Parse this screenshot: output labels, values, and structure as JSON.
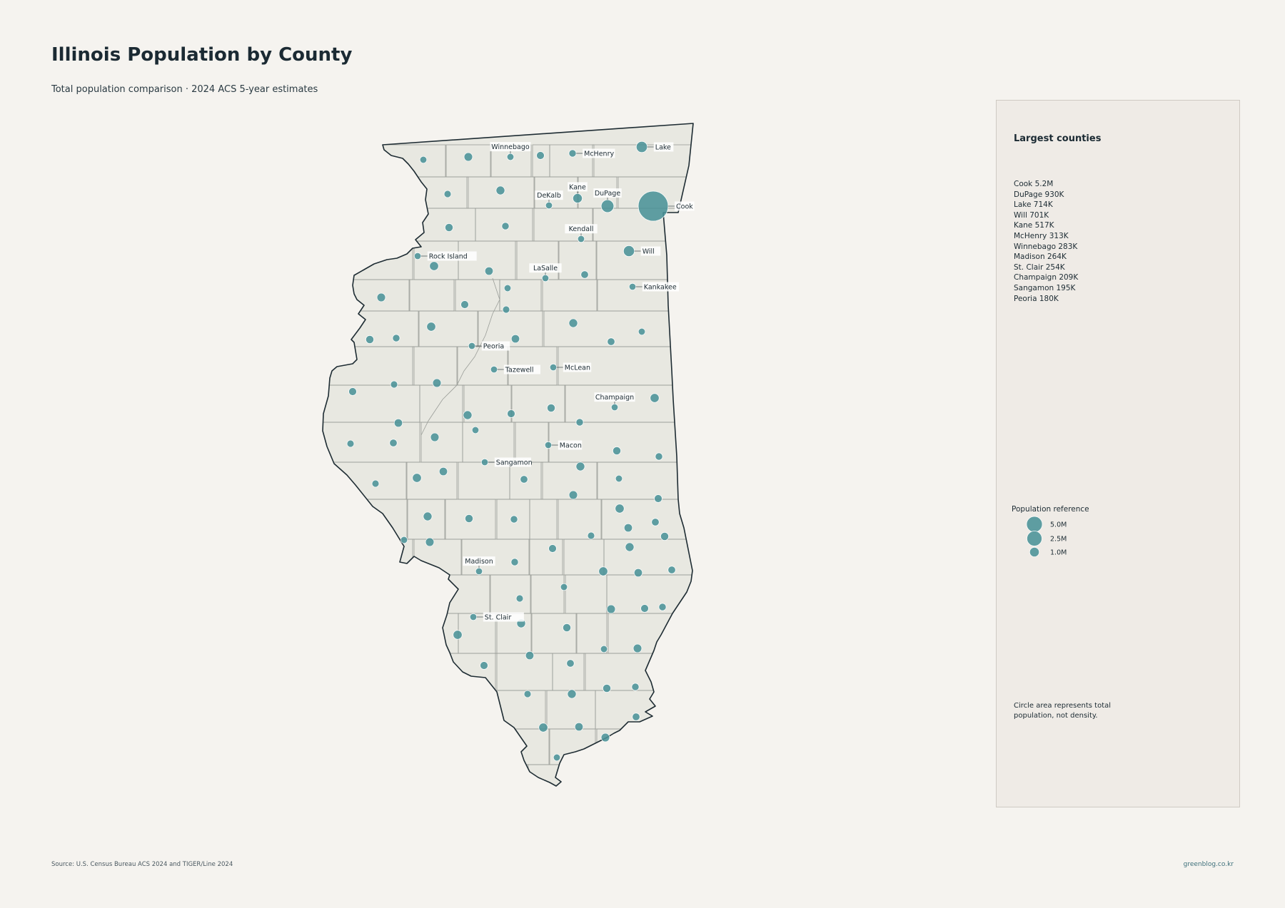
{
  "title": "Illinois Population by County",
  "subtitle": "Total population comparison · 2024 ACS 5-year estimates",
  "panel": {
    "title": "Largest counties",
    "top_counties": [
      "Cook  5.2M",
      "DuPage  930K",
      "Lake  714K",
      "Will  701K",
      "Kane  517K",
      "McHenry  313K",
      "Winnebago  283K",
      "Madison  264K",
      "St. Clair  254K",
      "Champaign  209K",
      "Sangamon  195K",
      "Peoria  180K"
    ],
    "reference_title": "Population reference",
    "reference_sizes": [
      {
        "label": "5.0M",
        "value": 5000000
      },
      {
        "label": "2.5M",
        "value": 2500000
      },
      {
        "label": "1.0M",
        "value": 1000000
      }
    ],
    "note": "Circle area represents total population, not density."
  },
  "source": "Source: U.S. Census Bureau ACS 2024 and TIGER/Line 2024",
  "credit": "greenblog.co.kr",
  "colors": {
    "background": "#f5f3ef",
    "county_fill": "#e8e8e1",
    "county_border": "#9a9d98",
    "state_outline": "#1e2c33",
    "bubble": "#4a9297",
    "panel": "#efebe6"
  },
  "labeled_counties": [
    {
      "name": "Winnebago",
      "population": 283000
    },
    {
      "name": "McHenry",
      "population": 313000
    },
    {
      "name": "Lake",
      "population": 714000
    },
    {
      "name": "Kane",
      "population": 517000
    },
    {
      "name": "DuPage",
      "population": 930000
    },
    {
      "name": "DeKalb",
      "population": 100000
    },
    {
      "name": "Cook",
      "population": 5200000
    },
    {
      "name": "Kendall",
      "population": 130000
    },
    {
      "name": "Rock Island",
      "population": 142000
    },
    {
      "name": "Will",
      "population": 701000
    },
    {
      "name": "LaSalle",
      "population": 109000
    },
    {
      "name": "Kankakee",
      "population": 107000
    },
    {
      "name": "Peoria",
      "population": 180000
    },
    {
      "name": "Tazewell",
      "population": 130000
    },
    {
      "name": "McLean",
      "population": 170000
    },
    {
      "name": "Champaign",
      "population": 209000
    },
    {
      "name": "Macon",
      "population": 102000
    },
    {
      "name": "Sangamon",
      "population": 195000
    },
    {
      "name": "Madison",
      "population": 264000
    },
    {
      "name": "St. Clair",
      "population": 254000
    }
  ],
  "other_county_count": 82
}
